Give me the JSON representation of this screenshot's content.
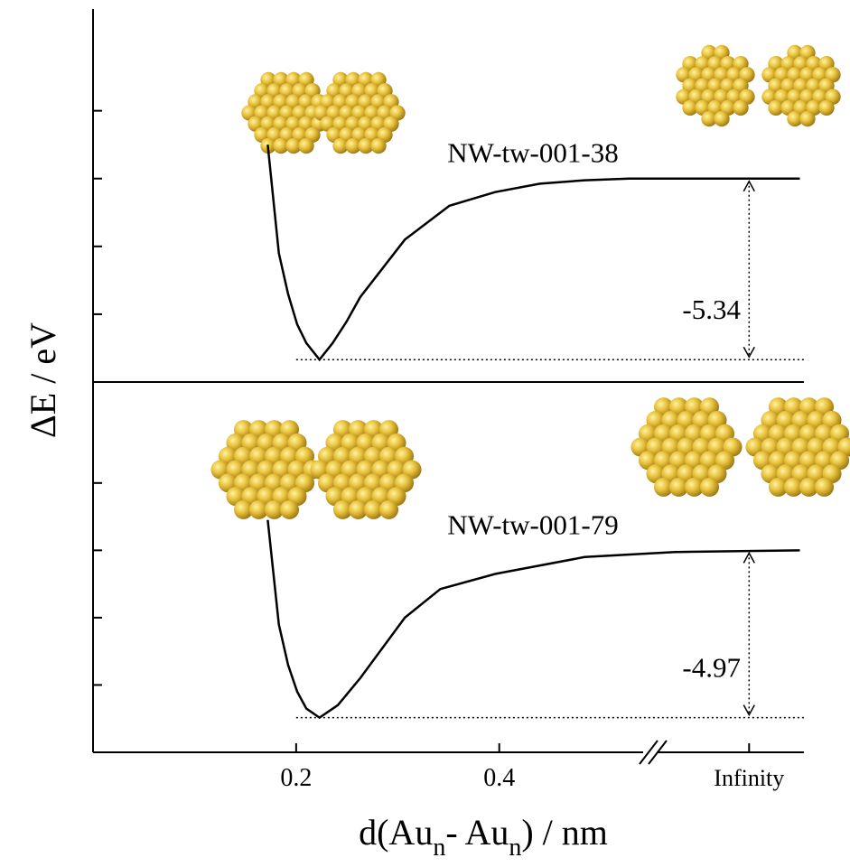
{
  "chart_data": [
    {
      "type": "line",
      "y_label": "ΔE / eV",
      "x": [
        0.172,
        0.183,
        0.192,
        0.201,
        0.21,
        0.223,
        0.236,
        0.25,
        0.263,
        0.307,
        0.351,
        0.396,
        0.44,
        0.484,
        0.528,
        0.696
      ],
      "series": [
        {
          "name": "NW-tw-001-38",
          "color": "#000000",
          "values": [
            1.0,
            -2.2,
            -3.4,
            -4.3,
            -4.85,
            -5.34,
            -4.85,
            -4.2,
            -3.5,
            -1.8,
            -0.8,
            -0.4,
            -0.15,
            -0.05,
            0,
            0
          ]
        }
      ],
      "well_depth": -5.34,
      "xlim": [
        0,
        0.7
      ],
      "ylim": [
        -6,
        5
      ],
      "yticks": [
        2,
        0,
        -2,
        -4
      ]
    },
    {
      "type": "line",
      "x_label_parts": [
        "d(Au",
        "n",
        "- Au",
        "n",
        ") / nm"
      ],
      "x": [
        0.172,
        0.183,
        0.192,
        0.201,
        0.21,
        0.223,
        0.241,
        0.263,
        0.307,
        0.342,
        0.396,
        0.484,
        0.573,
        0.696
      ],
      "series": [
        {
          "name": "NW-tw-001-79",
          "color": "#000000",
          "values": [
            0.9,
            -2.2,
            -3.4,
            -4.2,
            -4.7,
            -4.97,
            -4.6,
            -3.8,
            -2.0,
            -1.15,
            -0.7,
            -0.2,
            -0.05,
            0
          ]
        }
      ],
      "well_depth": -4.97,
      "xlim": [
        0,
        0.7
      ],
      "ylim": [
        -6,
        5
      ],
      "yticks": [
        2,
        0,
        -2,
        -4
      ],
      "xticks": [
        0.2,
        0.4,
        {
          "value": 0.646,
          "label": "Infinity"
        }
      ]
    }
  ]
}
